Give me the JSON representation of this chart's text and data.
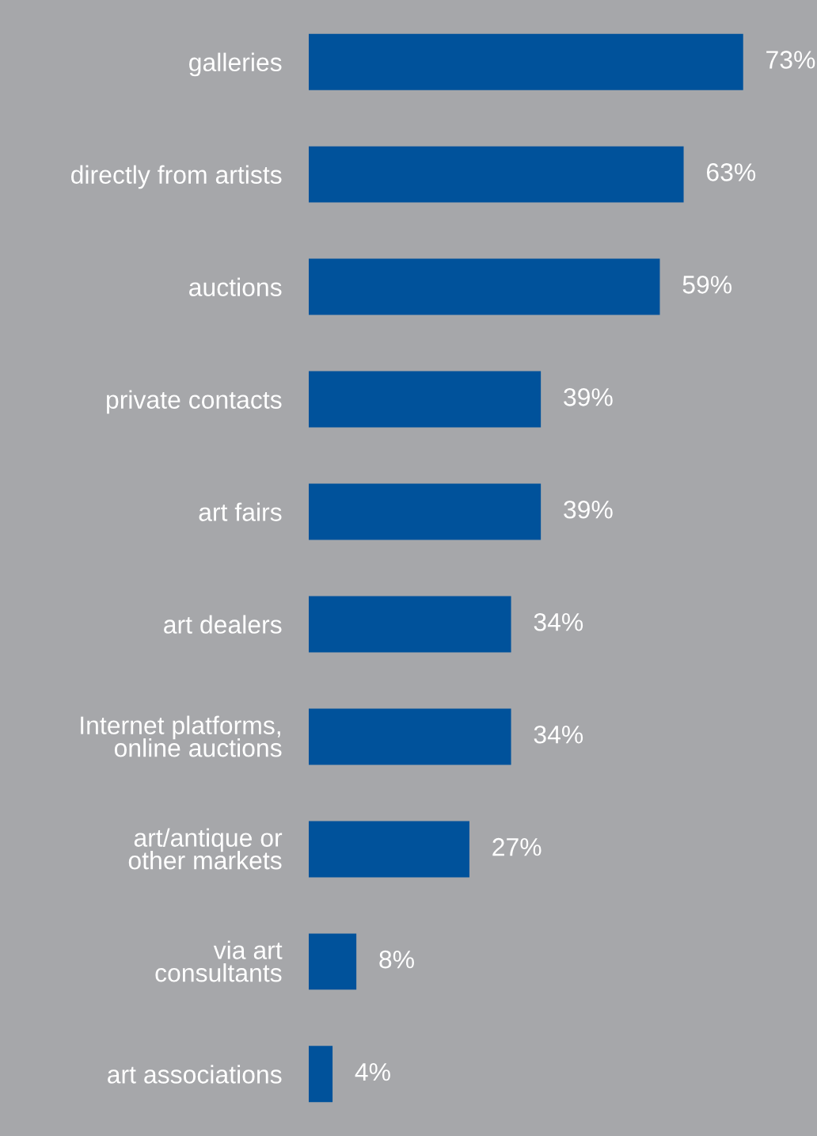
{
  "chart_data": {
    "type": "bar",
    "orientation": "horizontal",
    "categories": [
      "galleries",
      "directly from artists",
      "auctions",
      "private contacts",
      "art fairs",
      "art dealers",
      "Internet platforms,\nonline auctions",
      "art/antique or\nother markets",
      "via art\nconsultants",
      "art associations"
    ],
    "values": [
      73,
      63,
      59,
      39,
      39,
      34,
      34,
      27,
      8,
      4
    ],
    "value_labels": [
      "73%",
      "63%",
      "59%",
      "39%",
      "39%",
      "34%",
      "34%",
      "27%",
      "8%",
      "4%"
    ],
    "color": "#00529b",
    "grid": false,
    "legend": false,
    "tick_labels": "y"
  }
}
